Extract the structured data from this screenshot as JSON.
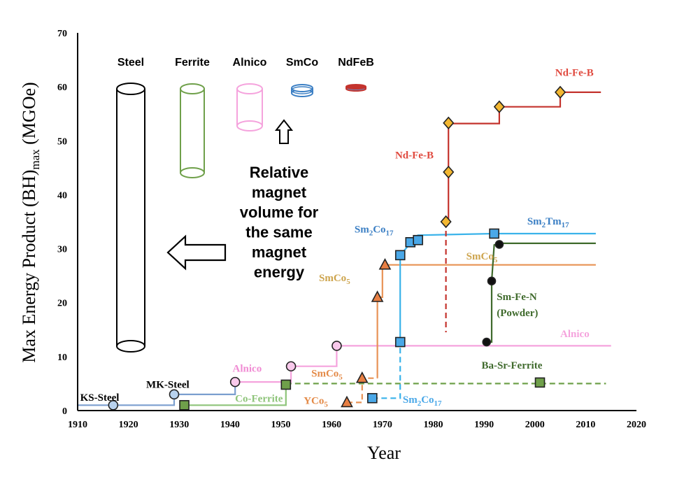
{
  "chart_data": {
    "type": "line",
    "xlabel": "Year",
    "ylabel": "Max Energy Product (BH)max (MGOe)",
    "ylabel_parts": {
      "main": "Max Energy Product (BH)",
      "sub": "max",
      "tail": " (MGOe)"
    },
    "xlim": [
      1910,
      2020
    ],
    "ylim": [
      0,
      70
    ],
    "x_ticks": [
      "1910",
      "1920",
      "1930",
      "1940",
      "1950",
      "1960",
      "1970",
      "1980",
      "1990",
      "2000",
      "2010",
      "2020"
    ],
    "y_ticks": [
      "0",
      "10",
      "20",
      "30",
      "40",
      "50",
      "60",
      "70"
    ],
    "grid": false,
    "series": [
      {
        "name": "KS-Steel / MK-Steel",
        "color": "#7b9fcf",
        "marker": "circle",
        "marker_fill": "#b8d2ee",
        "dash": false,
        "step": [
          [
            1910,
            1
          ],
          [
            1917,
            1
          ],
          [
            1929,
            1
          ],
          [
            1929,
            3
          ],
          [
            1941,
            3
          ],
          [
            1941,
            5.3
          ]
        ],
        "markers": [
          [
            1917,
            1
          ],
          [
            1929,
            3
          ]
        ]
      },
      {
        "name": "Alnico",
        "color": "#f5a3dd",
        "marker": "circle",
        "marker_fill": "#f8c9eb",
        "dash": false,
        "step": [
          [
            1941,
            5.3
          ],
          [
            1952,
            5.3
          ],
          [
            1952,
            8.2
          ],
          [
            1961,
            8.2
          ],
          [
            1961,
            12
          ],
          [
            2015,
            12
          ]
        ],
        "markers": [
          [
            1941,
            5.3
          ],
          [
            1952,
            8.2
          ],
          [
            1961,
            12
          ]
        ]
      },
      {
        "name": "Co-Ferrite",
        "color": "#8ec47a",
        "marker": "square",
        "marker_fill": "#6fa04a",
        "dash": false,
        "step": [
          [
            1931,
            1
          ],
          [
            1951,
            1
          ],
          [
            1951,
            4.8
          ]
        ],
        "markers": [
          [
            1931,
            1
          ],
          [
            1951,
            4.8
          ]
        ]
      },
      {
        "name": "Ba-Sr-Ferrite",
        "color": "#6fa04a",
        "marker": "square",
        "marker_fill": "#6fa04a",
        "dash": true,
        "step": [
          [
            1951,
            5
          ],
          [
            2014,
            5
          ]
        ],
        "markers": [
          [
            2001,
            5.2
          ]
        ]
      },
      {
        "name": "YCo5 / SmCo5",
        "color": "#e89254",
        "marker": "triangle",
        "marker_fill": "#e87f43",
        "dash": true,
        "step": [
          [
            1963,
            1.5
          ],
          [
            1966,
            1.5
          ],
          [
            1966,
            6
          ],
          [
            1969,
            6
          ]
        ],
        "markers": [
          [
            1963,
            1.5
          ],
          [
            1966,
            6
          ]
        ]
      },
      {
        "name": "SmCo5",
        "color": "#e89254",
        "marker": "triangle",
        "marker_fill": "#e87f43",
        "dash": false,
        "step": [
          [
            1969,
            6
          ],
          [
            1969,
            21
          ],
          [
            1970,
            21
          ],
          [
            1970,
            27
          ],
          [
            2012,
            27
          ]
        ],
        "markers": [
          [
            1969,
            21
          ],
          [
            1970.5,
            27
          ]
        ]
      },
      {
        "name": "Sm2Co17 early",
        "color": "#3ab3ea",
        "marker": "square",
        "marker_fill": "#4aa8e8",
        "dash": true,
        "step": [
          [
            1968,
            2.3
          ],
          [
            1973.5,
            2.3
          ],
          [
            1973.5,
            12.7
          ]
        ],
        "markers": [
          [
            1968,
            2.3
          ]
        ]
      },
      {
        "name": "Sm2Co17 / Sm2Tm17",
        "color": "#3ab3ea",
        "marker": "square",
        "marker_fill": "#4aa8e8",
        "dash": false,
        "step": [
          [
            1973.5,
            12.7
          ],
          [
            1973.5,
            28.8
          ],
          [
            1975.5,
            31
          ],
          [
            1977,
            31.5
          ],
          [
            1977,
            32.5
          ],
          [
            1992,
            32.8
          ],
          [
            2012,
            32.8
          ]
        ],
        "markers": [
          [
            1973.5,
            12.7
          ],
          [
            1973.5,
            28.8
          ],
          [
            1975.5,
            31.2
          ],
          [
            1977,
            31.6
          ],
          [
            1992,
            32.8
          ]
        ]
      },
      {
        "name": "Nd-Fe-B",
        "color": "#c4332d",
        "marker": "diamond",
        "marker_fill": "#f3b731",
        "dash": false,
        "step": [
          [
            1982.5,
            35
          ],
          [
            1983,
            35
          ],
          [
            1983,
            53.2
          ],
          [
            1993,
            53.2
          ],
          [
            1993,
            56.3
          ],
          [
            2005,
            56.3
          ],
          [
            2005,
            59
          ],
          [
            2013,
            59
          ]
        ],
        "markers": [
          [
            1982.5,
            35
          ],
          [
            1983,
            44.2
          ],
          [
            1983,
            53.3
          ],
          [
            1993,
            56.3
          ],
          [
            2005,
            59
          ]
        ]
      },
      {
        "name": "Nd-Fe-B dashed",
        "color": "#c4332d",
        "marker": "none",
        "marker_fill": "#c4332d",
        "dash": true,
        "step": [
          [
            1982.5,
            35
          ],
          [
            1982.5,
            14.5
          ]
        ],
        "markers": []
      },
      {
        "name": "Sm-Fe-N (Powder)",
        "color": "#3f6a2c",
        "marker": "circle",
        "marker_fill": "#111111",
        "dash": false,
        "step": [
          [
            1990.5,
            12.7
          ],
          [
            1991.5,
            12.7
          ],
          [
            1991.5,
            24
          ],
          [
            1992,
            30.7
          ],
          [
            1993,
            31
          ],
          [
            2012,
            31
          ]
        ],
        "markers": [
          [
            1990.5,
            12.7
          ],
          [
            1991.5,
            24
          ],
          [
            1993,
            30.8
          ]
        ]
      }
    ],
    "labels": [
      {
        "text": "KS-Steel",
        "x": 1910.5,
        "y": 1.8,
        "color": "#000000"
      },
      {
        "text": "MK-Steel",
        "x": 1923.5,
        "y": 4.2,
        "color": "#000000"
      },
      {
        "text": "Alnico",
        "x": 1940.5,
        "y": 7.2,
        "color": "#f08bd3"
      },
      {
        "text": "Co-Ferrite",
        "x": 1941,
        "y": 1.6,
        "color": "#8ec47a"
      },
      {
        "text": "SmCo",
        "sub": "5",
        "x": 1956,
        "y": 6.3,
        "color": "#e48a47"
      },
      {
        "text": "YCo",
        "sub": "5",
        "x": 1954.5,
        "y": 1.2,
        "color": "#e48a47"
      },
      {
        "text": "SmCo",
        "sub": "5",
        "x": 1957.5,
        "y": 24,
        "color": "#cda44d"
      },
      {
        "text": "Sm",
        "sub": "2",
        "tail": "Co",
        "sub2": "17",
        "x": 1964.5,
        "y": 33,
        "color": "#3b7fc4"
      },
      {
        "text": "Sm",
        "sub": "2",
        "tail": "Co",
        "sub2": "17",
        "x": 1974,
        "y": 1.4,
        "color": "#4aa8e8"
      },
      {
        "text": "Nd-Fe-B",
        "x": 1972.5,
        "y": 46.7,
        "color": "#e04a3f"
      },
      {
        "text": "Nd-Fe-B",
        "x": 2004,
        "y": 62,
        "color": "#e04a3f"
      },
      {
        "text": "SmCo",
        "sub": "5",
        "x": 1986.5,
        "y": 28,
        "color": "#cda44d"
      },
      {
        "text": "Sm",
        "sub": "2",
        "tail": "Tm",
        "sub2": "17",
        "x": 1998.5,
        "y": 34.5,
        "color": "#3b7fc4"
      },
      {
        "text": "Sm-Fe-N",
        "x": 1992.5,
        "y": 20.5,
        "color": "#3f6a2c"
      },
      {
        "text": "(Powder)",
        "x": 1992.5,
        "y": 17.5,
        "color": "#3f6a2c"
      },
      {
        "text": "Alnico",
        "x": 2005,
        "y": 13.6,
        "color": "#f5a3dd"
      },
      {
        "text": "Ba-Sr-Ferrite",
        "x": 1989.5,
        "y": 7.8,
        "color": "#3f6a2c"
      }
    ],
    "volume_legend": {
      "title_lines": [
        "Relative",
        "magnet",
        "volume for",
        "the same",
        "magnet",
        "energy"
      ],
      "magnets": [
        {
          "name": "Steel",
          "color": "#000000"
        },
        {
          "name": "Ferrite",
          "color": "#6fa04a"
        },
        {
          "name": "Alnico",
          "color": "#f5a3dd"
        },
        {
          "name": "SmCo",
          "color": "#3b7fc4"
        },
        {
          "name": "NdFeB",
          "color": "#c4332d"
        }
      ]
    }
  }
}
